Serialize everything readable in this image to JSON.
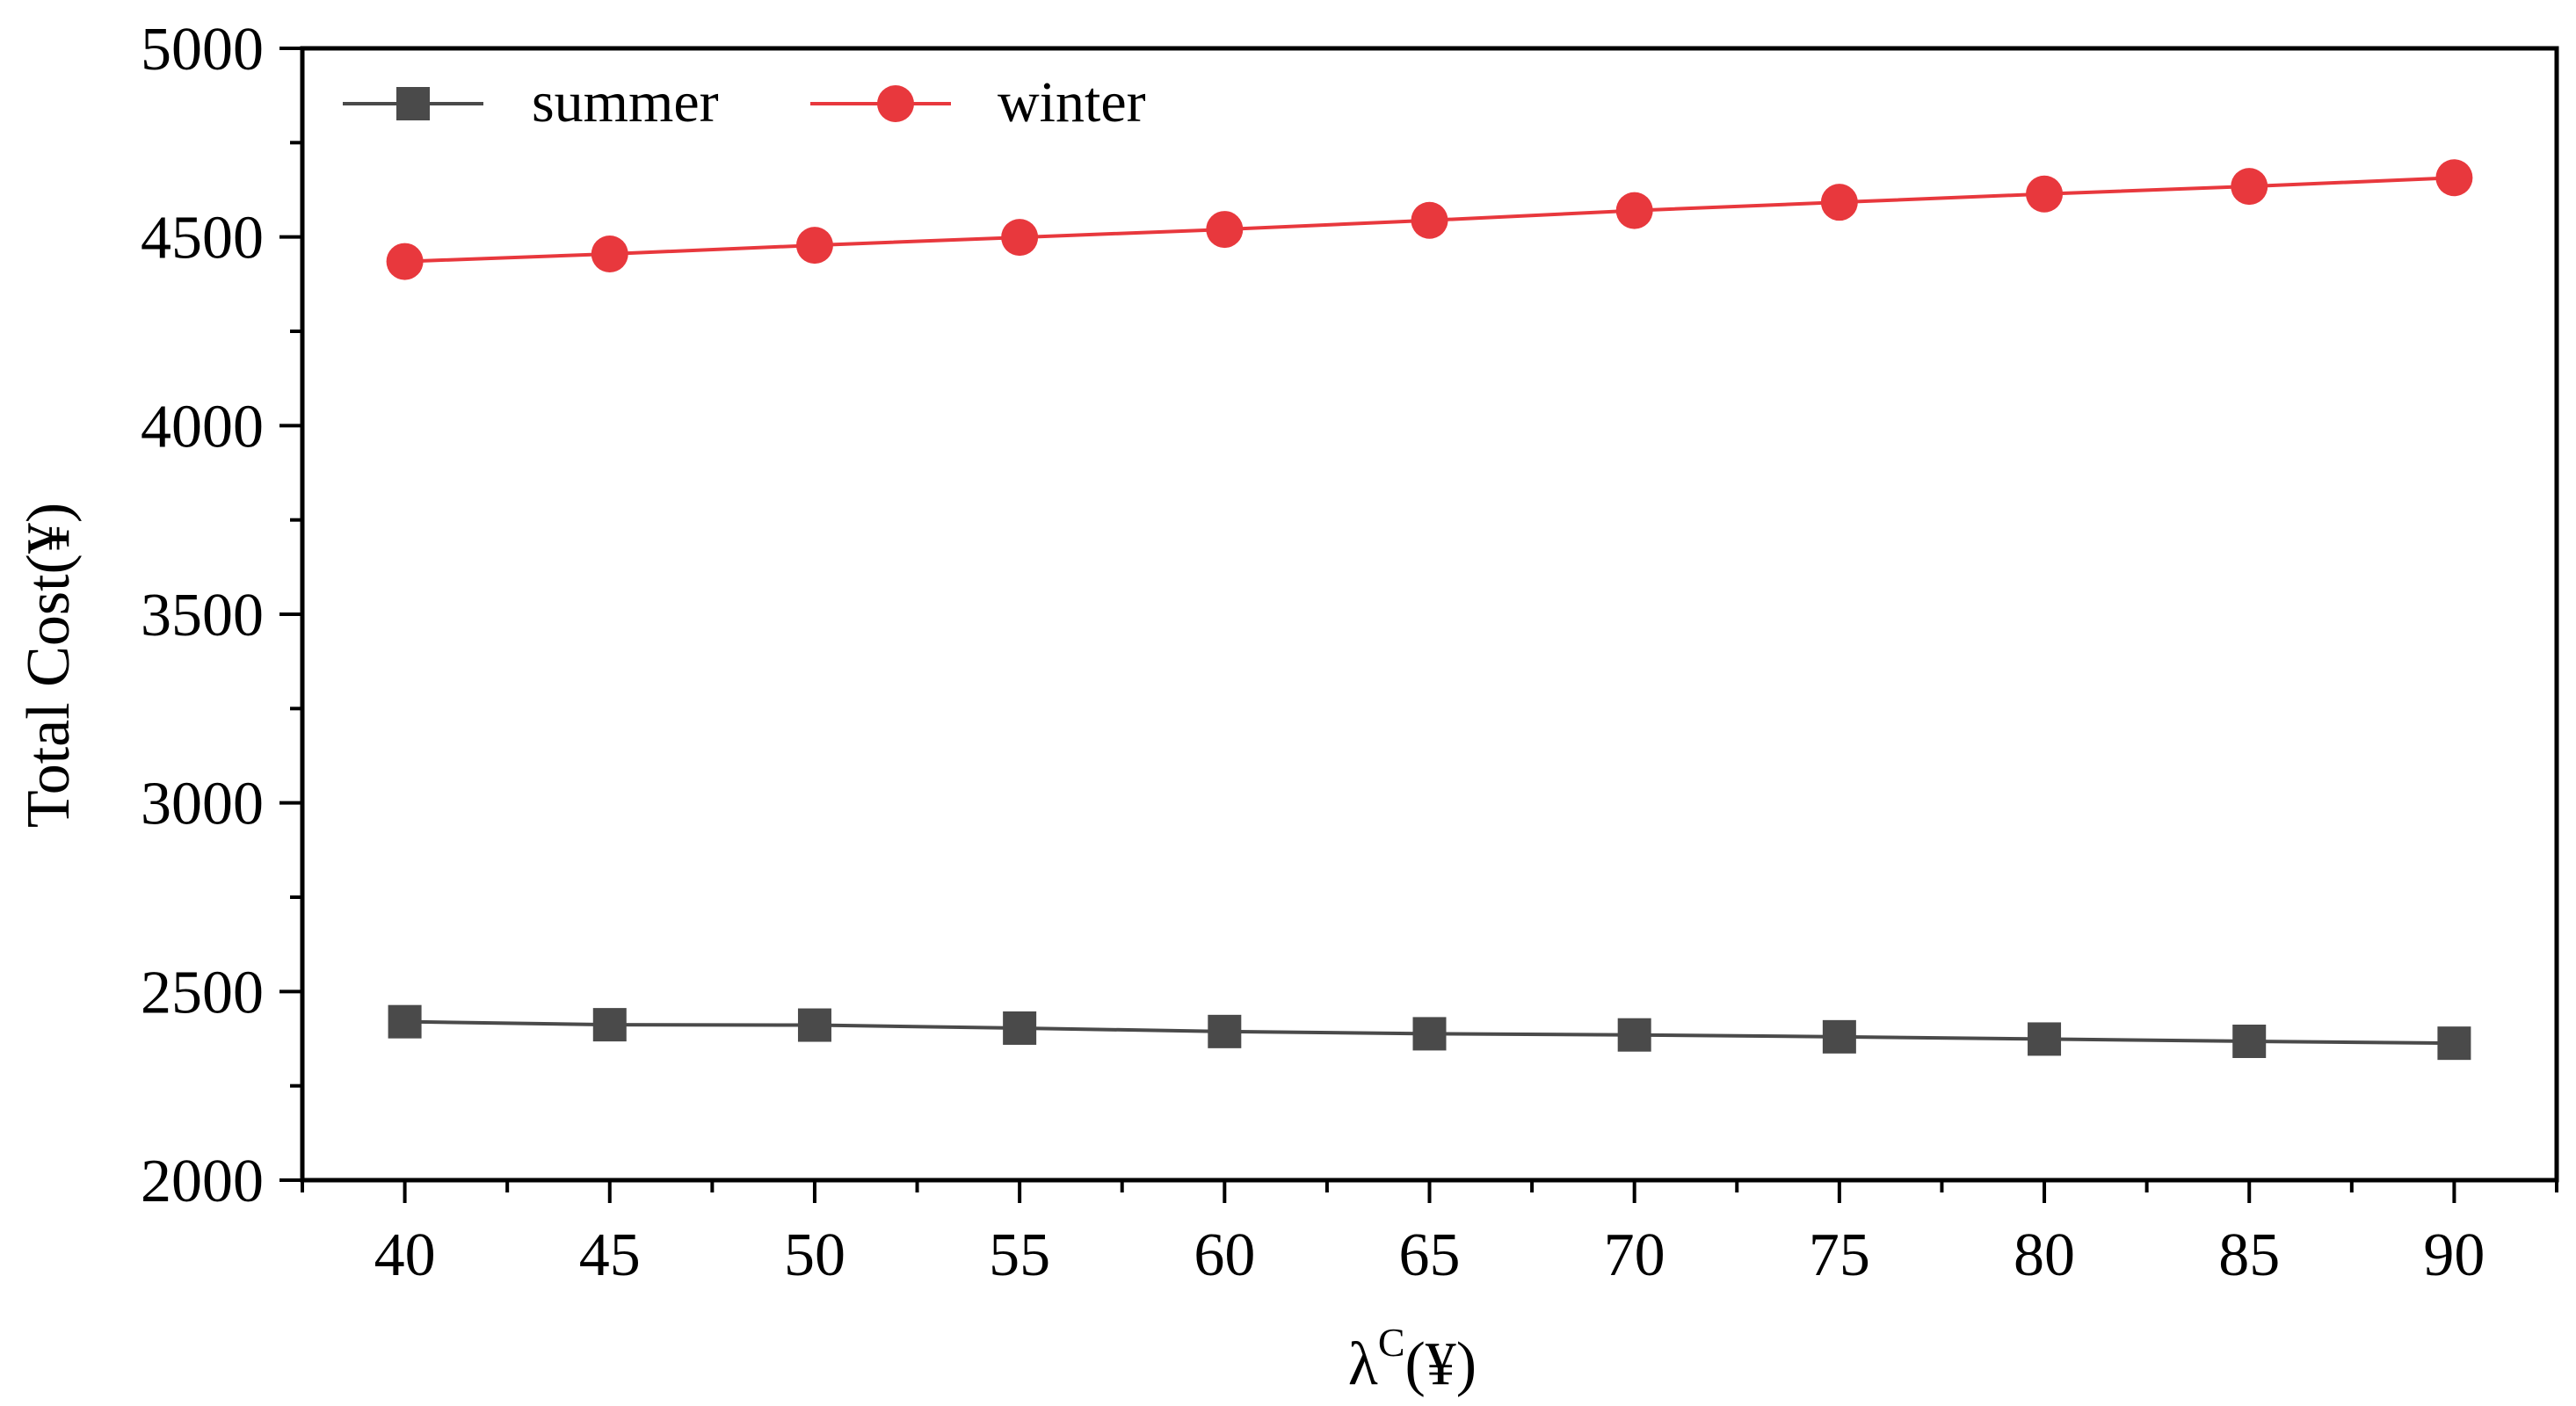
{
  "chart_data": {
    "type": "line",
    "x": [
      40,
      45,
      50,
      55,
      60,
      65,
      70,
      75,
      80,
      85,
      90
    ],
    "series": [
      {
        "name": "summer",
        "values": [
          2420,
          2412,
          2411,
          2403,
          2394,
          2388,
          2385,
          2380,
          2374,
          2368,
          2363
        ],
        "color": "#4a4a4a",
        "marker": "square"
      },
      {
        "name": "winter",
        "values": [
          4435,
          4455,
          4478,
          4499,
          4520,
          4544,
          4570,
          4592,
          4614,
          4634,
          4657
        ],
        "color": "#e8383d",
        "marker": "circle"
      }
    ],
    "xlabel_main": "λ",
    "xlabel_sup": "C",
    "xlabel_unit": "(¥)",
    "ylabel": "Total Cost(¥)",
    "xlim": [
      37.5,
      92.5
    ],
    "ylim": [
      2000,
      5000
    ],
    "xticks": [
      "40",
      "45",
      "50",
      "55",
      "60",
      "65",
      "70",
      "75",
      "80",
      "85",
      "90"
    ],
    "yticks": [
      "2000",
      "2500",
      "3000",
      "3500",
      "4000",
      "4500",
      "5000"
    ],
    "grid": false,
    "legend_position": "top-left"
  }
}
